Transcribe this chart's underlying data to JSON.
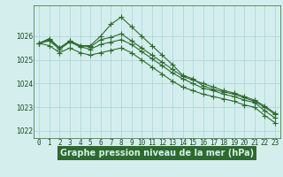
{
  "title": "Graphe pression niveau de la mer (hPa)",
  "x_hours": [
    0,
    1,
    2,
    3,
    4,
    5,
    6,
    7,
    8,
    9,
    10,
    11,
    12,
    13,
    14,
    15,
    16,
    17,
    18,
    19,
    20,
    21,
    22,
    23
  ],
  "series": [
    [
      1025.7,
      1025.9,
      1025.5,
      1025.8,
      1025.6,
      1025.6,
      1026.0,
      1026.5,
      1026.8,
      1026.4,
      1026.0,
      1025.6,
      1025.2,
      1024.8,
      1024.35,
      1024.2,
      1023.9,
      1023.75,
      1023.65,
      1023.55,
      1023.4,
      1023.25,
      1023.0,
      1022.7
    ],
    [
      1025.7,
      1025.85,
      1025.5,
      1025.8,
      1025.6,
      1025.55,
      1025.85,
      1025.95,
      1026.1,
      1025.8,
      1025.5,
      1025.2,
      1024.9,
      1024.6,
      1024.3,
      1024.15,
      1024.0,
      1023.85,
      1023.7,
      1023.6,
      1023.45,
      1023.3,
      1023.05,
      1022.75
    ],
    [
      1025.7,
      1025.8,
      1025.45,
      1025.75,
      1025.55,
      1025.45,
      1025.65,
      1025.75,
      1025.85,
      1025.65,
      1025.35,
      1025.05,
      1024.75,
      1024.45,
      1024.2,
      1024.0,
      1023.8,
      1023.7,
      1023.55,
      1023.45,
      1023.3,
      1023.2,
      1022.85,
      1022.55
    ],
    [
      1025.7,
      1025.6,
      1025.3,
      1025.5,
      1025.3,
      1025.2,
      1025.3,
      1025.4,
      1025.5,
      1025.3,
      1025.0,
      1024.7,
      1024.4,
      1024.1,
      1023.85,
      1023.7,
      1023.55,
      1023.45,
      1023.35,
      1023.25,
      1023.1,
      1023.0,
      1022.65,
      1022.35
    ]
  ],
  "line_color": "#2d6a2d",
  "marker": "+",
  "markersize": 4,
  "linewidth": 0.8,
  "markeredgewidth": 0.8,
  "ylim": [
    1021.7,
    1027.3
  ],
  "yticks": [
    1022,
    1023,
    1024,
    1025,
    1026
  ],
  "xlim": [
    -0.5,
    23.5
  ],
  "xtick_labels": [
    "0",
    "1",
    "2",
    "3",
    "4",
    "5",
    "6",
    "7",
    "8",
    "9",
    "10",
    "11",
    "12",
    "13",
    "14",
    "15",
    "16",
    "17",
    "18",
    "19",
    "20",
    "21",
    "22",
    "23"
  ],
  "background_color": "#d4eeee",
  "grid_color": "#aad4d4",
  "title_fontsize": 7.0,
  "tick_fontsize": 5.5,
  "title_color": "#1a4a1a",
  "axis_color": "#2d6a2d",
  "title_bg_color": "#2d6a2d",
  "title_text_color": "#d4eeee"
}
